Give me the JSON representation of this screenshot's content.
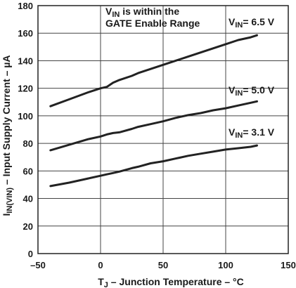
{
  "chart_data": {
    "type": "line",
    "title": "",
    "xlabel": {
      "main": "T",
      "sub": "J",
      "rest": " – Junction Temperature – °C"
    },
    "ylabel": {
      "main": "I",
      "sub": "IN(VIN)",
      "rest": " – Input Supply Current – µA"
    },
    "xlim": [
      -50,
      150
    ],
    "ylim": [
      0,
      180
    ],
    "xticks": [
      -50,
      0,
      50,
      100,
      150
    ],
    "xtick_labels": [
      "–50",
      "0",
      "50",
      "100",
      "150"
    ],
    "yticks": [
      0,
      20,
      40,
      60,
      80,
      100,
      120,
      140,
      160,
      180
    ],
    "ytick_labels": [
      "0",
      "20",
      "40",
      "60",
      "80",
      "100",
      "120",
      "140",
      "160",
      "180"
    ],
    "grid": true,
    "line_color": "#222222",
    "grid_color": "#444444",
    "annotation": {
      "line1_main": "V",
      "line1_sub": "IN",
      "line1_rest": " is within the",
      "line2": "GATE Enable Range"
    },
    "series": [
      {
        "label": {
          "main": "V",
          "sub": "IN",
          "rest": "= 6.5 V"
        },
        "x": [
          -40,
          -25,
          -10,
          0,
          5,
          10,
          15,
          25,
          30,
          40,
          50,
          60,
          70,
          80,
          90,
          100,
          110,
          120,
          125
        ],
        "y": [
          107,
          112,
          117,
          120,
          121,
          124,
          126,
          129,
          131,
          134,
          137,
          140,
          143,
          146,
          149,
          152,
          155,
          157,
          158.5
        ]
      },
      {
        "label": {
          "main": "V",
          "sub": "IN",
          "rest": "= 5.0 V"
        },
        "x": [
          -40,
          -25,
          -10,
          0,
          5,
          10,
          15,
          25,
          30,
          40,
          50,
          60,
          70,
          80,
          90,
          100,
          110,
          120,
          125
        ],
        "y": [
          75,
          79,
          83,
          85,
          86.5,
          87.5,
          88,
          90.5,
          92,
          94,
          96,
          98.5,
          100.5,
          102,
          104,
          105.5,
          107.5,
          109.5,
          110.5
        ]
      },
      {
        "label": {
          "main": "V",
          "sub": "IN",
          "rest": "= 3.1 V"
        },
        "x": [
          -40,
          -25,
          -10,
          0,
          5,
          10,
          15,
          25,
          30,
          40,
          50,
          60,
          70,
          80,
          90,
          100,
          110,
          120,
          125
        ],
        "y": [
          49,
          51.5,
          54.5,
          56.5,
          57.5,
          58.5,
          59.5,
          62,
          63,
          65.5,
          67,
          69,
          71,
          72.5,
          74,
          75.5,
          76.5,
          77.5,
          78.5
        ]
      }
    ]
  }
}
